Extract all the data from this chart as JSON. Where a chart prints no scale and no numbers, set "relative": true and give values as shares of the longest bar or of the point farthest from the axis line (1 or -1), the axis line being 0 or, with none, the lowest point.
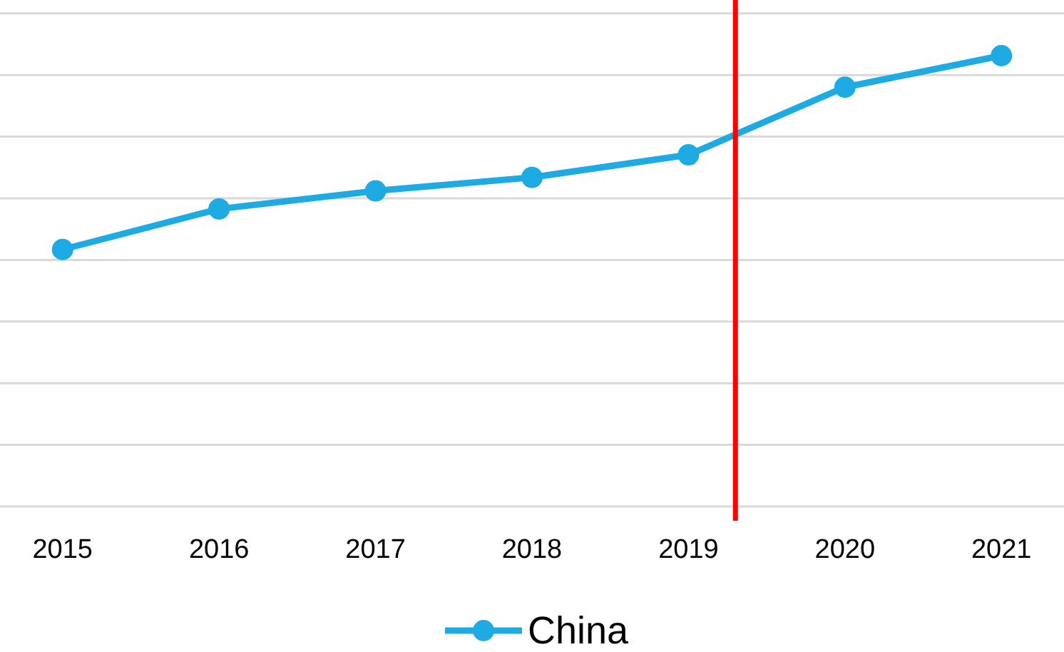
{
  "chart_data": {
    "type": "line",
    "x": [
      2015,
      2016,
      2017,
      2018,
      2019,
      2020,
      2021
    ],
    "xlim": [
      2014.6,
      2021.4
    ],
    "xticks": [
      2015,
      2016,
      2017,
      2018,
      2019,
      2020,
      2021
    ],
    "relative": true,
    "series": [
      {
        "name": "China",
        "color": "#1eaae2",
        "values": [
          0.57,
          0.66,
          0.7,
          0.73,
          0.78,
          0.93,
          1
        ]
      }
    ],
    "ref_lines": [
      {
        "axis": "x",
        "value": 2019.3,
        "color": "#ff0000"
      }
    ],
    "grid": "y",
    "legend": "bottom",
    "marker": "circle",
    "line_style": "solid"
  }
}
